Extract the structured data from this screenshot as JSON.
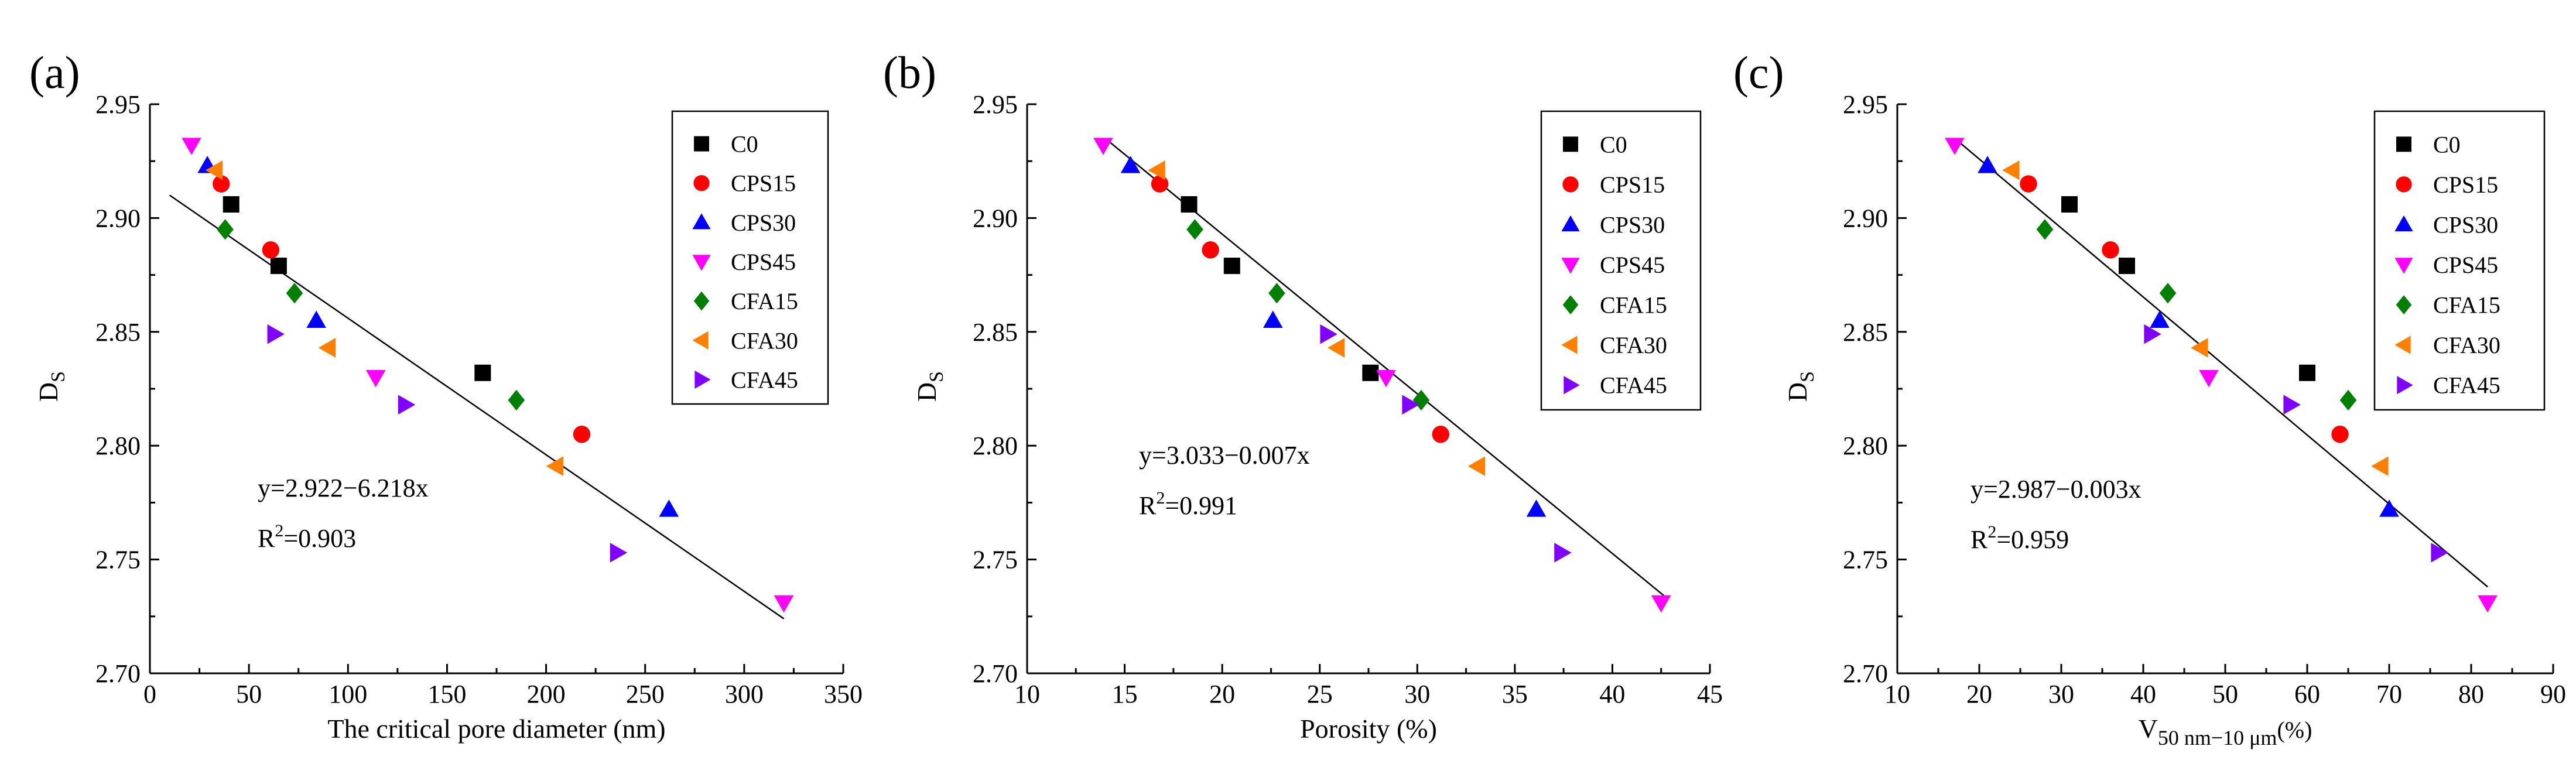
{
  "chart_data": [
    {
      "type": "scatter",
      "panel_label": "(a)",
      "xlabel": "The critical pore diameter (nm)",
      "ylabel_main": "D",
      "ylabel_sub": "S",
      "xlim": [
        0,
        350
      ],
      "ylim": [
        2.7,
        2.95
      ],
      "xticks": [
        "0",
        "50",
        "100",
        "150",
        "200",
        "250",
        "300",
        "350"
      ],
      "xtick_values": [
        0,
        50,
        100,
        150,
        200,
        250,
        300,
        350
      ],
      "yticks": [
        "2.70",
        "2.75",
        "2.80",
        "2.85",
        "2.90",
        "2.95"
      ],
      "ytick_values": [
        2.7,
        2.75,
        2.8,
        2.85,
        2.9,
        2.95
      ],
      "equation": "y=2.922−6.218x",
      "r2_prefix": "R",
      "r2_sup": "2",
      "r2_value": "=0.903",
      "fit_line": {
        "x": [
          10,
          320
        ],
        "y": [
          2.91,
          2.724
        ]
      },
      "legend_position": "top-right",
      "series": [
        {
          "name": "C0",
          "marker": "square",
          "color": "#000000",
          "x": [
            41,
            65,
            168
          ],
          "y": [
            2.906,
            2.879,
            2.832
          ]
        },
        {
          "name": "CPS15",
          "marker": "circle",
          "color": "#ff0000",
          "x": [
            36,
            61,
            218
          ],
          "y": [
            2.915,
            2.886,
            2.805
          ]
        },
        {
          "name": "CPS30",
          "marker": "triangle-up",
          "color": "#0000ff",
          "x": [
            29,
            84,
            262
          ],
          "y": [
            2.923,
            2.855,
            2.772
          ]
        },
        {
          "name": "CPS45",
          "marker": "triangle-down",
          "color": "#ff00ff",
          "x": [
            21,
            114,
            320
          ],
          "y": [
            2.932,
            2.83,
            2.731
          ]
        },
        {
          "name": "CFA15",
          "marker": "diamond",
          "color": "#008000",
          "x": [
            38,
            73,
            185
          ],
          "y": [
            2.895,
            2.867,
            2.82
          ]
        },
        {
          "name": "CFA30",
          "marker": "triangle-left",
          "color": "#ff8000",
          "x": [
            33,
            90,
            205
          ],
          "y": [
            2.921,
            2.843,
            2.791
          ]
        },
        {
          "name": "CFA45",
          "marker": "triangle-right",
          "color": "#8000ff",
          "x": [
            63,
            129,
            236
          ],
          "y": [
            2.849,
            2.818,
            2.753
          ]
        }
      ]
    },
    {
      "type": "scatter",
      "panel_label": "(b)",
      "xlabel": "Porosity  (%)",
      "ylabel_main": "D",
      "ylabel_sub": "S",
      "xlim": [
        10,
        45
      ],
      "ylim": [
        2.7,
        2.95
      ],
      "xticks": [
        "10",
        "15",
        "20",
        "25",
        "30",
        "35",
        "40",
        "45"
      ],
      "xtick_values": [
        10,
        15,
        20,
        25,
        30,
        35,
        40,
        45
      ],
      "yticks": [
        "2.70",
        "2.75",
        "2.80",
        "2.85",
        "2.90",
        "2.95"
      ],
      "ytick_values": [
        2.7,
        2.75,
        2.8,
        2.85,
        2.9,
        2.95
      ],
      "equation": "y=3.033−0.007x",
      "r2_prefix": "R",
      "r2_sup": "2",
      "r2_value": "=0.991",
      "fit_line": {
        "x": [
          14,
          42.8
        ],
        "y": [
          2.935,
          2.733
        ]
      },
      "legend_position": "top-right",
      "series": [
        {
          "name": "C0",
          "marker": "square",
          "color": "#000000",
          "x": [
            18.3,
            20.5,
            27.6
          ],
          "y": [
            2.906,
            2.879,
            2.832
          ]
        },
        {
          "name": "CPS15",
          "marker": "circle",
          "color": "#ff0000",
          "x": [
            16.8,
            19.4,
            31.2
          ],
          "y": [
            2.915,
            2.886,
            2.805
          ]
        },
        {
          "name": "CPS30",
          "marker": "triangle-up",
          "color": "#0000ff",
          "x": [
            15.3,
            22.6,
            36.1
          ],
          "y": [
            2.923,
            2.855,
            2.772
          ]
        },
        {
          "name": "CPS45",
          "marker": "triangle-down",
          "color": "#ff00ff",
          "x": [
            13.9,
            28.4,
            42.5
          ],
          "y": [
            2.932,
            2.83,
            2.731
          ]
        },
        {
          "name": "CFA15",
          "marker": "diamond",
          "color": "#008000",
          "x": [
            18.6,
            22.8,
            30.2
          ],
          "y": [
            2.895,
            2.867,
            2.82
          ]
        },
        {
          "name": "CFA30",
          "marker": "triangle-left",
          "color": "#ff8000",
          "x": [
            16.7,
            25.9,
            33.1
          ],
          "y": [
            2.921,
            2.843,
            2.791
          ]
        },
        {
          "name": "CFA45",
          "marker": "triangle-right",
          "color": "#8000ff",
          "x": [
            25.4,
            29.6,
            37.4
          ],
          "y": [
            2.849,
            2.818,
            2.753
          ]
        }
      ]
    },
    {
      "type": "scatter",
      "panel_label": "(c)",
      "xlabel_main": "V",
      "xlabel_sub": "50 nm−10 μm",
      "xlabel_suffix": "(%)",
      "ylabel_main": "D",
      "ylabel_sub": "S",
      "xlim": [
        10,
        90
      ],
      "ylim": [
        2.7,
        2.95
      ],
      "xticks": [
        "10",
        "20",
        "30",
        "40",
        "50",
        "60",
        "70",
        "80",
        "90"
      ],
      "xtick_values": [
        10,
        20,
        30,
        40,
        50,
        60,
        70,
        80,
        90
      ],
      "yticks": [
        "2.70",
        "2.75",
        "2.80",
        "2.85",
        "2.90",
        "2.95"
      ],
      "ytick_values": [
        2.7,
        2.75,
        2.8,
        2.85,
        2.9,
        2.95
      ],
      "equation": "y=2.987−0.003x",
      "r2_prefix": "R",
      "r2_sup": "2",
      "r2_value": "=0.959",
      "fit_line": {
        "x": [
          17,
          82
        ],
        "y": [
          2.935,
          2.738
        ]
      },
      "legend_position": "top-right",
      "series": [
        {
          "name": "C0",
          "marker": "square",
          "color": "#000000",
          "x": [
            31,
            38,
            60
          ],
          "y": [
            2.906,
            2.879,
            2.832
          ]
        },
        {
          "name": "CPS15",
          "marker": "circle",
          "color": "#ff0000",
          "x": [
            26,
            36,
            64
          ],
          "y": [
            2.915,
            2.886,
            2.805
          ]
        },
        {
          "name": "CPS30",
          "marker": "triangle-up",
          "color": "#0000ff",
          "x": [
            21,
            42,
            70
          ],
          "y": [
            2.923,
            2.855,
            2.772
          ]
        },
        {
          "name": "CPS45",
          "marker": "triangle-down",
          "color": "#ff00ff",
          "x": [
            17,
            48,
            82
          ],
          "y": [
            2.932,
            2.83,
            2.731
          ]
        },
        {
          "name": "CFA15",
          "marker": "diamond",
          "color": "#008000",
          "x": [
            28,
            43,
            65
          ],
          "y": [
            2.895,
            2.867,
            2.82
          ]
        },
        {
          "name": "CFA30",
          "marker": "triangle-left",
          "color": "#ff8000",
          "x": [
            24,
            47,
            69
          ],
          "y": [
            2.921,
            2.843,
            2.791
          ]
        },
        {
          "name": "CFA45",
          "marker": "triangle-right",
          "color": "#8000ff",
          "x": [
            41,
            58,
            76
          ],
          "y": [
            2.849,
            2.818,
            2.753
          ]
        }
      ]
    }
  ]
}
